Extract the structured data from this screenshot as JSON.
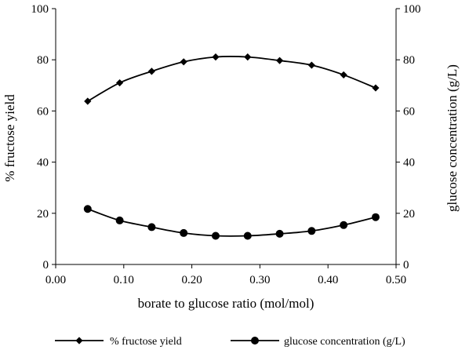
{
  "chart_data": {
    "type": "line",
    "xlabel": "borate to glucose ratio (mol/mol)",
    "ylabel_left": "% fructose yield",
    "ylabel_right": "glucose concentration (g/L)",
    "xlim": [
      0,
      0.5
    ],
    "ylim_left": [
      0,
      100
    ],
    "ylim_right": [
      0,
      100
    ],
    "x_ticks": [
      "0.00",
      "0.10",
      "0.20",
      "0.30",
      "0.40",
      "0.50"
    ],
    "x_tick_values": [
      0,
      0.1,
      0.2,
      0.3,
      0.4,
      0.5
    ],
    "y_ticks": [
      "0",
      "20",
      "40",
      "60",
      "80",
      "100"
    ],
    "y_tick_values": [
      0,
      20,
      40,
      60,
      80,
      100
    ],
    "grid": false,
    "legend_position": "bottom",
    "series": [
      {
        "name": "% fructose yield",
        "axis": "left",
        "marker": "diamond",
        "color": "#000000",
        "x": [
          0.047,
          0.094,
          0.141,
          0.188,
          0.235,
          0.282,
          0.329,
          0.376,
          0.423,
          0.47
        ],
        "y": [
          63.8,
          71.0,
          75.5,
          79.2,
          81.1,
          81.1,
          79.7,
          77.9,
          74.1,
          69.0
        ]
      },
      {
        "name": "glucose concentration (g/L)",
        "axis": "right",
        "marker": "circle",
        "color": "#000000",
        "x": [
          0.047,
          0.094,
          0.141,
          0.188,
          0.235,
          0.282,
          0.329,
          0.376,
          0.423,
          0.47
        ],
        "y": [
          21.7,
          17.2,
          14.6,
          12.3,
          11.2,
          11.2,
          12.0,
          13.1,
          15.4,
          18.5
        ]
      }
    ]
  }
}
